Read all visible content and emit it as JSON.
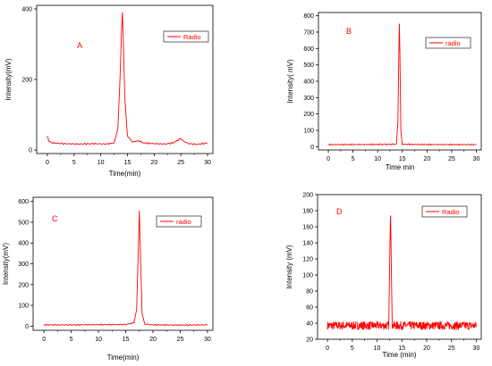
{
  "chart_data": [
    {
      "type": "line",
      "panel_letter": "A",
      "xlabel": "Time(min)",
      "ylabel": "Intensity(mV)",
      "xlim": [
        -2,
        31
      ],
      "ylim": [
        -10,
        410
      ],
      "xticks": [
        0,
        5,
        10,
        15,
        20,
        25,
        30
      ],
      "yticks": [
        0,
        200,
        400
      ],
      "legend": {
        "label": "Radio",
        "placement": "top-right"
      },
      "series": [
        {
          "name": "Radio",
          "color": "#ff0000",
          "x": [
            0,
            0.3,
            1,
            3,
            6,
            9,
            11,
            12.5,
            13.2,
            13.6,
            13.9,
            14.05,
            14.2,
            14.5,
            15,
            16,
            16.5,
            17,
            17.5,
            18,
            20,
            22,
            23.5,
            24.5,
            25,
            25.5,
            26.5,
            28,
            30
          ],
          "y": [
            40,
            25,
            20,
            18,
            17,
            18,
            17,
            20,
            60,
            200,
            340,
            390,
            330,
            150,
            40,
            22,
            25,
            26,
            24,
            20,
            18,
            17,
            20,
            28,
            33,
            25,
            18,
            16,
            20
          ]
        }
      ]
    },
    {
      "type": "line",
      "panel_letter": "B",
      "xlabel": "Time min",
      "ylabel": "Intensity(  mV)",
      "xlim": [
        -2,
        31
      ],
      "ylim": [
        -20,
        820
      ],
      "xticks": [
        0,
        5,
        10,
        15,
        20,
        25,
        30
      ],
      "yticks": [
        0,
        100,
        200,
        300,
        400,
        500,
        600,
        700,
        800
      ],
      "legend": {
        "label": "radio",
        "placement": "top-right"
      },
      "series": [
        {
          "name": "radio",
          "color": "#ff0000",
          "x": [
            0,
            5,
            10,
            13.8,
            14.1,
            14.3,
            14.4,
            14.5,
            14.7,
            15,
            20,
            25,
            30
          ],
          "y": [
            13,
            13,
            14,
            15,
            150,
            600,
            750,
            600,
            100,
            15,
            13,
            13,
            13
          ]
        }
      ]
    },
    {
      "type": "line",
      "panel_letter": "C",
      "xlabel": "Time(min)",
      "ylabel": "Intensity(mV)",
      "xlim": [
        -2,
        31
      ],
      "ylim": [
        -20,
        620
      ],
      "xticks": [
        0,
        5,
        10,
        15,
        20,
        25,
        30
      ],
      "yticks": [
        0,
        100,
        200,
        300,
        400,
        500,
        600
      ],
      "legend": {
        "label": "radio",
        "placement": "top-right"
      },
      "series": [
        {
          "name": "radio",
          "color": "#ff0000",
          "x": [
            0,
            5,
            10,
            15,
            16.5,
            17,
            17.3,
            17.5,
            17.7,
            18,
            18.5,
            20,
            25,
            30
          ],
          "y": [
            6,
            6,
            7,
            8,
            15,
            80,
            350,
            555,
            350,
            60,
            10,
            6,
            5,
            6
          ]
        }
      ]
    },
    {
      "type": "line",
      "panel_letter": "D",
      "xlabel": "Time (min)",
      "ylabel": "Intensity (mV)",
      "xlim": [
        -2,
        31
      ],
      "ylim": [
        20,
        200
      ],
      "xticks": [
        0,
        5,
        10,
        15,
        20,
        25,
        30
      ],
      "yticks": [
        20,
        40,
        60,
        80,
        100,
        120,
        140,
        160,
        180,
        200
      ],
      "legend": {
        "label": "Radio",
        "placement": "top-right"
      },
      "series": [
        {
          "name": "Radio",
          "color": "#ff0000",
          "baseline": 37,
          "noise_amplitude": 5,
          "peak": {
            "x": 12.7,
            "y": 182
          }
        }
      ]
    }
  ]
}
